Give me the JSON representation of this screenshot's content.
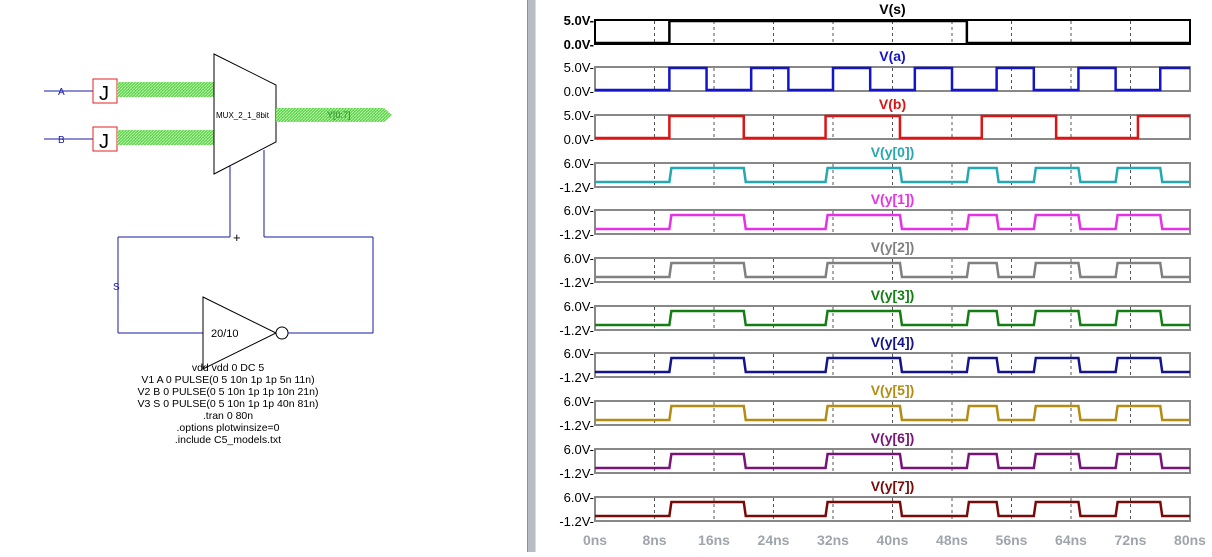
{
  "schematic": {
    "port_a_label": "A",
    "port_b_label": "B",
    "port_s_label": "S",
    "mux_label": "MUX_2_1_8bit",
    "output_label": "Y[0:7]",
    "inverter_label": "20/10",
    "plus_mark": "+",
    "jumper_glyph": "J",
    "netlist": [
      "vdd vdd 0 DC 5",
      "V1 A 0 PULSE(0 5 10n 1p 1p 5n 11n)",
      "V2 B 0 PULSE(0 5 10n 1p 1p 10n 21n)",
      "V3 S 0 PULSE(0 5 10n 1p 1p 40n 81n)",
      ".tran 0 80n",
      ".options plotwinsize=0",
      ".include C5_models.txt"
    ]
  },
  "waveform_viewer": {
    "x_axis": {
      "ticks": [
        "0ns",
        "8ns",
        "16ns",
        "24ns",
        "32ns",
        "40ns",
        "48ns",
        "56ns",
        "64ns",
        "72ns",
        "80ns"
      ],
      "range_ns": [
        0,
        80
      ]
    },
    "traces": [
      {
        "title": "V(s)",
        "color": "#000000",
        "ticks": [
          "5.0V-",
          "0.0V-"
        ],
        "bold_ticks": true,
        "frame_color": "#000000"
      },
      {
        "title": "V(a)",
        "color": "#1414c8",
        "ticks": [
          "5.0V-",
          "0.0V-"
        ],
        "frame_color": "#888888"
      },
      {
        "title": "V(b)",
        "color": "#dc1414",
        "ticks": [
          "5.0V-",
          "0.0V-"
        ],
        "frame_color": "#888888"
      },
      {
        "title": "V(y[0])",
        "color": "#23a8b4",
        "ticks": [
          "6.0V-",
          "-1.2V-"
        ],
        "frame_color": "#888888"
      },
      {
        "title": "V(y[1])",
        "color": "#e632e6",
        "ticks": [
          "6.0V-",
          "-1.2V-"
        ],
        "frame_color": "#888888"
      },
      {
        "title": "V(y[2])",
        "color": "#808080",
        "ticks": [
          "6.0V-",
          "-1.2V-"
        ],
        "frame_color": "#888888"
      },
      {
        "title": "V(y[3])",
        "color": "#147d14",
        "ticks": [
          "6.0V-",
          "-1.2V-"
        ],
        "frame_color": "#888888"
      },
      {
        "title": "V(y[4])",
        "color": "#14148c",
        "ticks": [
          "6.0V-",
          "-1.2V-"
        ],
        "frame_color": "#888888"
      },
      {
        "title": "V(y[5])",
        "color": "#b48c14",
        "ticks": [
          "6.0V-",
          "-1.2V-"
        ],
        "frame_color": "#888888"
      },
      {
        "title": "V(y[6])",
        "color": "#781478",
        "ticks": [
          "6.0V-",
          "-1.2V-"
        ],
        "frame_color": "#888888"
      },
      {
        "title": "V(y[7])",
        "color": "#780a0a",
        "ticks": [
          "6.0V-",
          "-1.2V-"
        ],
        "frame_color": "#888888"
      }
    ],
    "signals": {
      "s_transitions_ns": [
        10,
        50
      ],
      "a_transitions_ns": [
        10,
        15,
        21,
        26,
        32,
        37,
        43,
        48,
        54,
        59,
        65,
        70,
        76
      ],
      "b_transitions_ns": [
        10,
        20,
        31,
        41,
        52,
        62,
        73
      ],
      "y_transitions_ns": [
        10,
        20,
        31,
        41,
        50,
        54,
        59,
        65,
        70,
        76
      ]
    }
  }
}
